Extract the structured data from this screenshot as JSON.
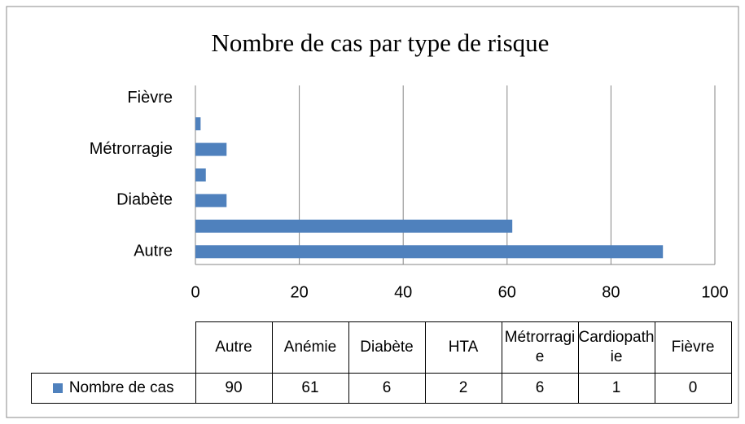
{
  "chart_data": {
    "type": "barh",
    "title": "Nombre de cas par type de risque",
    "categories": [
      "Autre",
      "Anémie",
      "Diabète",
      "HTA",
      "Métrorragie",
      "Cardiopathie",
      "Fièvre"
    ],
    "series": [
      {
        "name": "Nombre de cas",
        "color": "#4f81bd",
        "values": [
          90,
          61,
          6,
          2,
          6,
          1,
          0
        ]
      }
    ],
    "xlim": [
      0,
      100
    ],
    "xticks": [
      0,
      20,
      40,
      60,
      80,
      100
    ],
    "grid": true
  }
}
